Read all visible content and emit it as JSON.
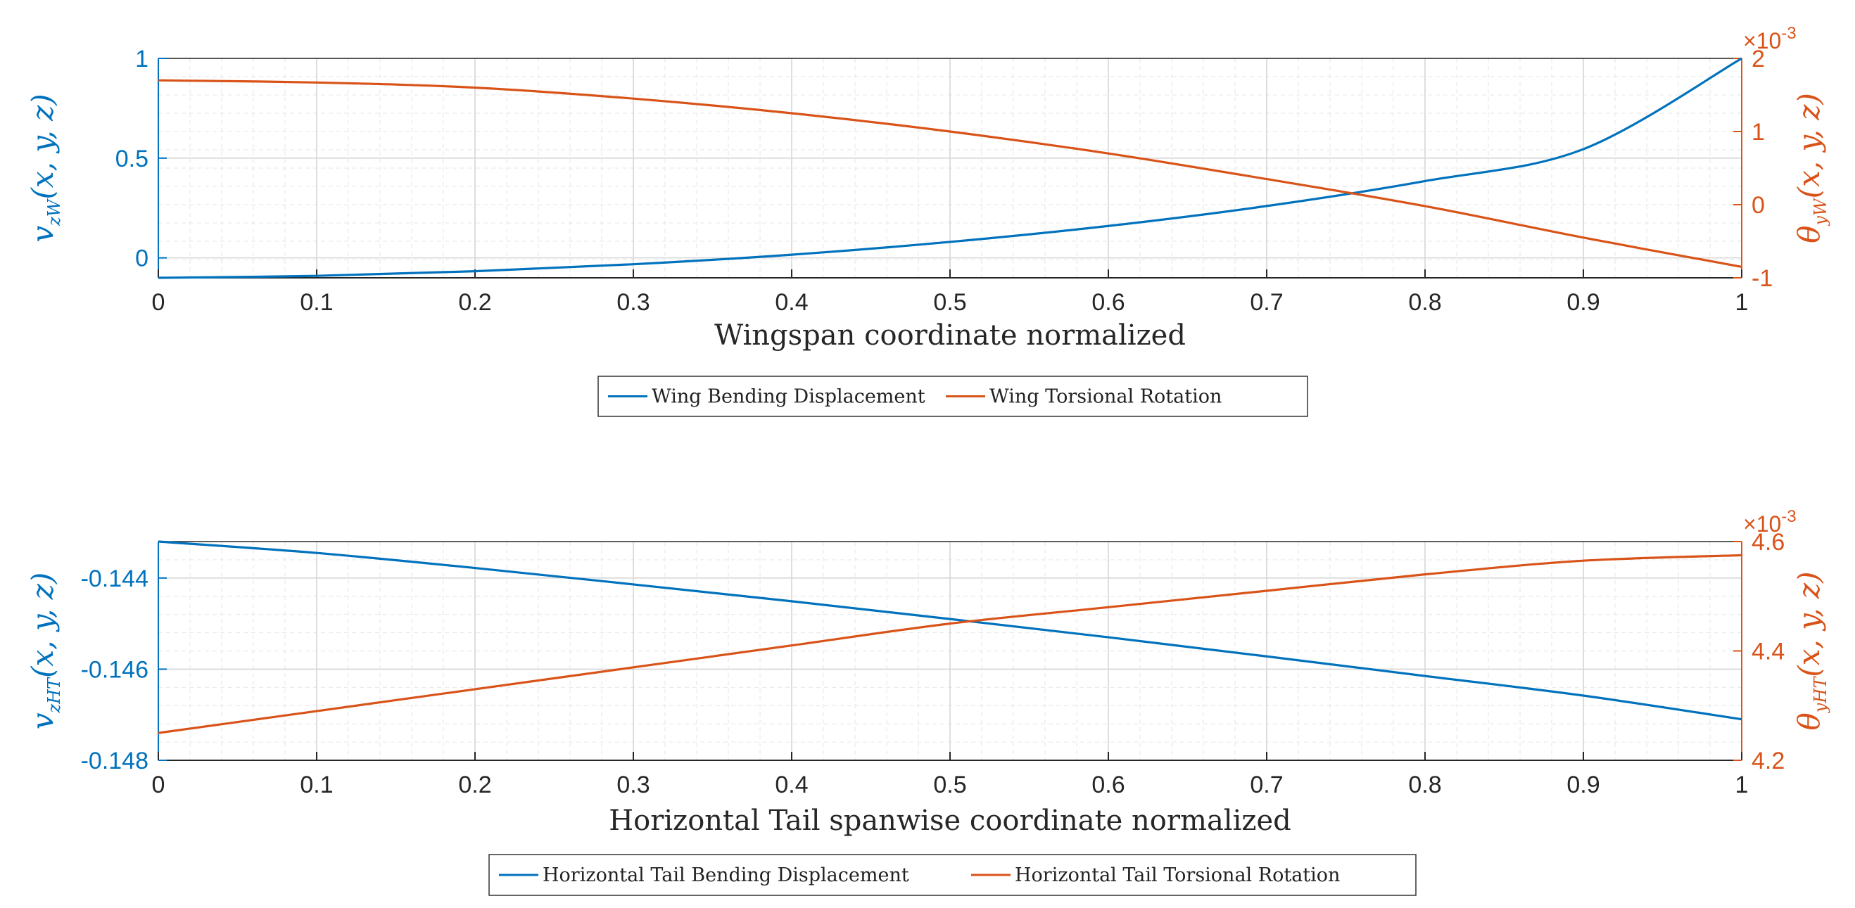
{
  "colors": {
    "blue": "#0072BD",
    "orange": "#D95319",
    "grid": "#d6d6d6",
    "minor_grid": "#e9e9e9",
    "axis": "#262626"
  },
  "chart_data": [
    {
      "type": "line",
      "xlabel": "Wingspan coordinate normalized",
      "xlim": [
        0,
        1
      ],
      "xticks": [
        "0",
        "0.1",
        "0.2",
        "0.3",
        "0.4",
        "0.5",
        "0.6",
        "0.7",
        "0.8",
        "0.9",
        "1"
      ],
      "left_axis": {
        "label_main": "v",
        "label_sub": "zW",
        "label_args": "(x, y, z)",
        "ylim": [
          -0.1,
          1
        ],
        "ticks": [
          0,
          0.5,
          1
        ],
        "tick_labels": [
          "0",
          "0.5",
          "1"
        ]
      },
      "right_axis": {
        "label_main": "θ",
        "label_sub": "yW",
        "label_args": "(x, y, z)",
        "ylim": [
          -1,
          2
        ],
        "ticks": [
          -1,
          0,
          1,
          2
        ],
        "tick_labels": [
          "-1",
          "0",
          "1",
          "2"
        ],
        "exponent_label": "×10",
        "exponent_power": "-3"
      },
      "series": [
        {
          "name": "Wing Bending Displacement",
          "axis": "left",
          "color": "blue",
          "x": [
            0,
            0.1,
            0.2,
            0.3,
            0.4,
            0.5,
            0.6,
            0.7,
            0.8,
            0.9,
            1.0
          ],
          "values": [
            -0.1,
            -0.09,
            -0.067,
            -0.032,
            0.016,
            0.08,
            0.16,
            0.26,
            0.385,
            0.545,
            1.0
          ]
        },
        {
          "name": "Wing Torsional Rotation",
          "axis": "right",
          "color": "orange",
          "x": [
            0,
            0.1,
            0.2,
            0.3,
            0.4,
            0.5,
            0.6,
            0.7,
            0.8,
            0.9,
            1.0
          ],
          "values": [
            1.7,
            1.67,
            1.6,
            1.45,
            1.25,
            1.0,
            0.7,
            0.35,
            -0.02,
            -0.45,
            -0.85
          ]
        }
      ]
    },
    {
      "type": "line",
      "xlabel": "Horizontal Tail spanwise coordinate normalized",
      "xlim": [
        0,
        1
      ],
      "xticks": [
        "0",
        "0.1",
        "0.2",
        "0.3",
        "0.4",
        "0.5",
        "0.6",
        "0.7",
        "0.8",
        "0.9",
        "1"
      ],
      "left_axis": {
        "label_main": "v",
        "label_sub": "zHT",
        "label_args": "(x, y, z)",
        "ylim": [
          -0.148,
          -0.1432
        ],
        "ticks": [
          -0.148,
          -0.146,
          -0.144
        ],
        "tick_labels": [
          "-0.148",
          "-0.146",
          "-0.144"
        ]
      },
      "right_axis": {
        "label_main": "θ",
        "label_sub": "yHT",
        "label_args": "(x, y, z)",
        "ylim": [
          4.2,
          4.6
        ],
        "ticks": [
          4.2,
          4.4,
          4.6
        ],
        "tick_labels": [
          "4.2",
          "4.4",
          "4.6"
        ],
        "exponent_label": "×10",
        "exponent_power": "-3"
      },
      "series": [
        {
          "name": "Horizontal Tail Bending Displacement",
          "axis": "left",
          "color": "blue",
          "x": [
            0,
            0.1,
            0.2,
            0.3,
            0.4,
            0.5,
            0.6,
            0.7,
            0.8,
            0.9,
            1.0
          ],
          "values": [
            -0.1432,
            -0.14345,
            -0.14378,
            -0.14414,
            -0.14451,
            -0.1449,
            -0.1453,
            -0.14572,
            -0.14615,
            -0.14658,
            -0.1471
          ]
        },
        {
          "name": "Horizontal Tail Torsional Rotation",
          "axis": "right",
          "color": "orange",
          "x": [
            0,
            0.1,
            0.2,
            0.3,
            0.4,
            0.5,
            0.6,
            0.7,
            0.8,
            0.9,
            1.0
          ],
          "values": [
            4.25,
            4.29,
            4.33,
            4.37,
            4.41,
            4.45,
            4.48,
            4.51,
            4.54,
            4.565,
            4.575
          ]
        }
      ]
    }
  ]
}
